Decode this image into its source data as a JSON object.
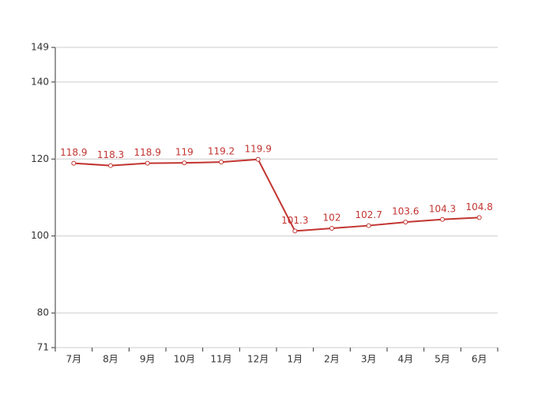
{
  "chart_data": {
    "type": "line",
    "categories": [
      "7月",
      "8月",
      "9月",
      "10月",
      "11月",
      "12月",
      "1月",
      "2月",
      "3月",
      "4月",
      "5月",
      "6月"
    ],
    "values": [
      118.9,
      118.3,
      118.9,
      119,
      119.2,
      119.9,
      101.3,
      102,
      102.7,
      103.6,
      104.3,
      104.8
    ],
    "color": "#c23531",
    "ylim": [
      71,
      149
    ],
    "yticks": [
      71,
      80,
      100,
      120,
      140,
      149
    ],
    "grid": true
  }
}
